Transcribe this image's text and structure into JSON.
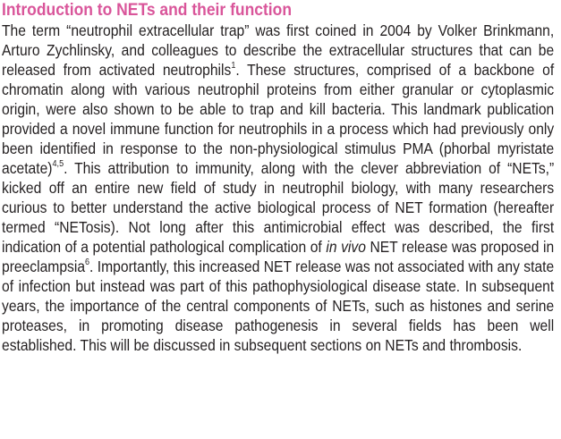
{
  "section": {
    "heading": "Introduction to NETs and their function"
  },
  "paragraph": {
    "p1": "The term “neutrophil extracellular trap” was first coined in 2004 by Volker Brinkmann, Arturo Zychlinsky, and colleagues to describe the extracellular structures that can be released from activated neutrophils",
    "ref1": "1",
    "p2": ". These structures, comprised of a backbone of chromatin along with various neutrophil proteins from either granular or cytoplasmic origin, were also shown to be able to trap and kill bacteria. This landmark publication provided a novel immune function for neutrophils in a process which had previously only been identified in response to the non-physiological stimulus PMA (phorbal myristate acetate)",
    "ref2": "4,5",
    "p3": ". This attribution to immunity, along with the clever abbreviation of “NETs,” kicked off an entire new field of study in neutrophil biology, with many researchers curious to better understand the active biological process of NET formation (hereafter termed “NETosis). Not long after this antimicrobial effect was described, the first indication of a potential pathological complication of ",
    "italic": "in vivo",
    "p4": " NET release was proposed in preeclampsia",
    "ref3": "6",
    "p5": ". Importantly, this increased NET release was not associated with any state of infection but instead was part of this pathophysiological disease state. In subsequent years, the importance of the central components of NETs, such as histones and serine proteases, in promoting disease pathogenesis in several fields has been well established. This will be discussed in subsequent sections on NETs and thrombosis."
  },
  "colors": {
    "heading": "#d9559a",
    "text": "#231f20"
  }
}
